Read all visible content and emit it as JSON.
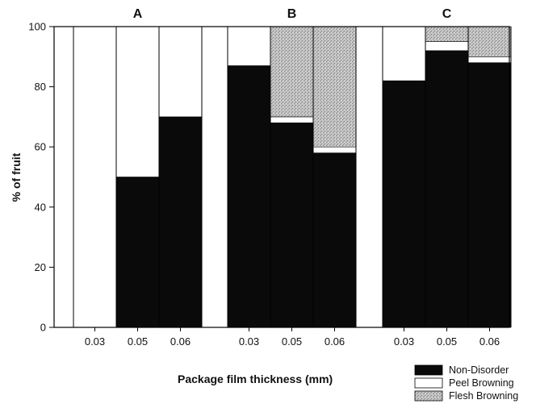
{
  "chart_data": {
    "type": "bar",
    "stacked": true,
    "xlabel": "Package film thickness (mm)",
    "ylabel": "% of fruit",
    "ylim": [
      0,
      100
    ],
    "yticks": [
      0,
      20,
      40,
      60,
      80,
      100
    ],
    "grid": false,
    "legend_position": "bottom-right",
    "series_colors": {
      "non_disorder": "#0a0a0a",
      "peel_browning": "#ffffff",
      "flesh_browning": "#bdbdbd"
    },
    "legend": [
      "Non-Disorder",
      "Peel Browning",
      "Flesh Browning"
    ],
    "panels": [
      {
        "label": "A",
        "categories": [
          "0.03",
          "0.05",
          "0.06"
        ],
        "series": [
          {
            "name": "Non-Disorder",
            "values": [
              0,
              50,
              70
            ]
          },
          {
            "name": "Peel Browning",
            "values": [
              100,
              50,
              30
            ]
          },
          {
            "name": "Flesh Browning",
            "values": [
              0,
              0,
              0
            ]
          }
        ]
      },
      {
        "label": "B",
        "categories": [
          "0.03",
          "0.05",
          "0.06"
        ],
        "series": [
          {
            "name": "Non-Disorder",
            "values": [
              87,
              68,
              58
            ]
          },
          {
            "name": "Peel Browning",
            "values": [
              13,
              2,
              2
            ]
          },
          {
            "name": "Flesh Browning",
            "values": [
              0,
              30,
              40
            ]
          }
        ]
      },
      {
        "label": "C",
        "categories": [
          "0.03",
          "0.05",
          "0.06"
        ],
        "series": [
          {
            "name": "Non-Disorder",
            "values": [
              82,
              92,
              88
            ]
          },
          {
            "name": "Peel Browning",
            "values": [
              18,
              3,
              2
            ]
          },
          {
            "name": "Flesh Browning",
            "values": [
              0,
              5,
              10
            ]
          }
        ]
      }
    ]
  }
}
